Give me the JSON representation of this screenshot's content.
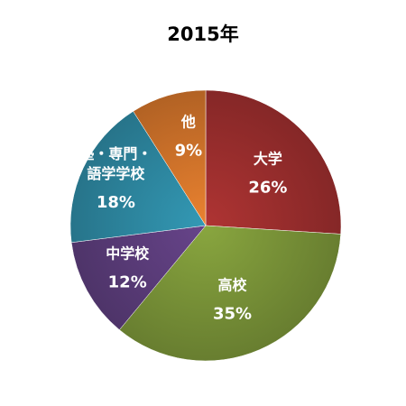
{
  "chart_data": {
    "type": "pie",
    "title": "2015年",
    "slices": [
      {
        "label": "大学",
        "lines": [
          "大学"
        ],
        "value": 26,
        "value_label": "26%",
        "color": "#a2302f"
      },
      {
        "label": "高校",
        "lines": [
          "高校"
        ],
        "value": 35,
        "value_label": "35%",
        "color": "#7f9a3a"
      },
      {
        "label": "中学校",
        "lines": [
          "中学校"
        ],
        "value": 12,
        "value_label": "12%",
        "color": "#5f3f80"
      },
      {
        "label": "塾・専門・語学学校",
        "lines": [
          "塾・専門・",
          "語学学校"
        ],
        "value": 18,
        "value_label": "18%",
        "color": "#2f8ea8"
      },
      {
        "label": "他",
        "lines": [
          "他"
        ],
        "value": 9,
        "value_label": "9%",
        "color": "#d9782c"
      }
    ],
    "start_angle_deg": 0,
    "direction": "clockwise",
    "legend": "none"
  }
}
